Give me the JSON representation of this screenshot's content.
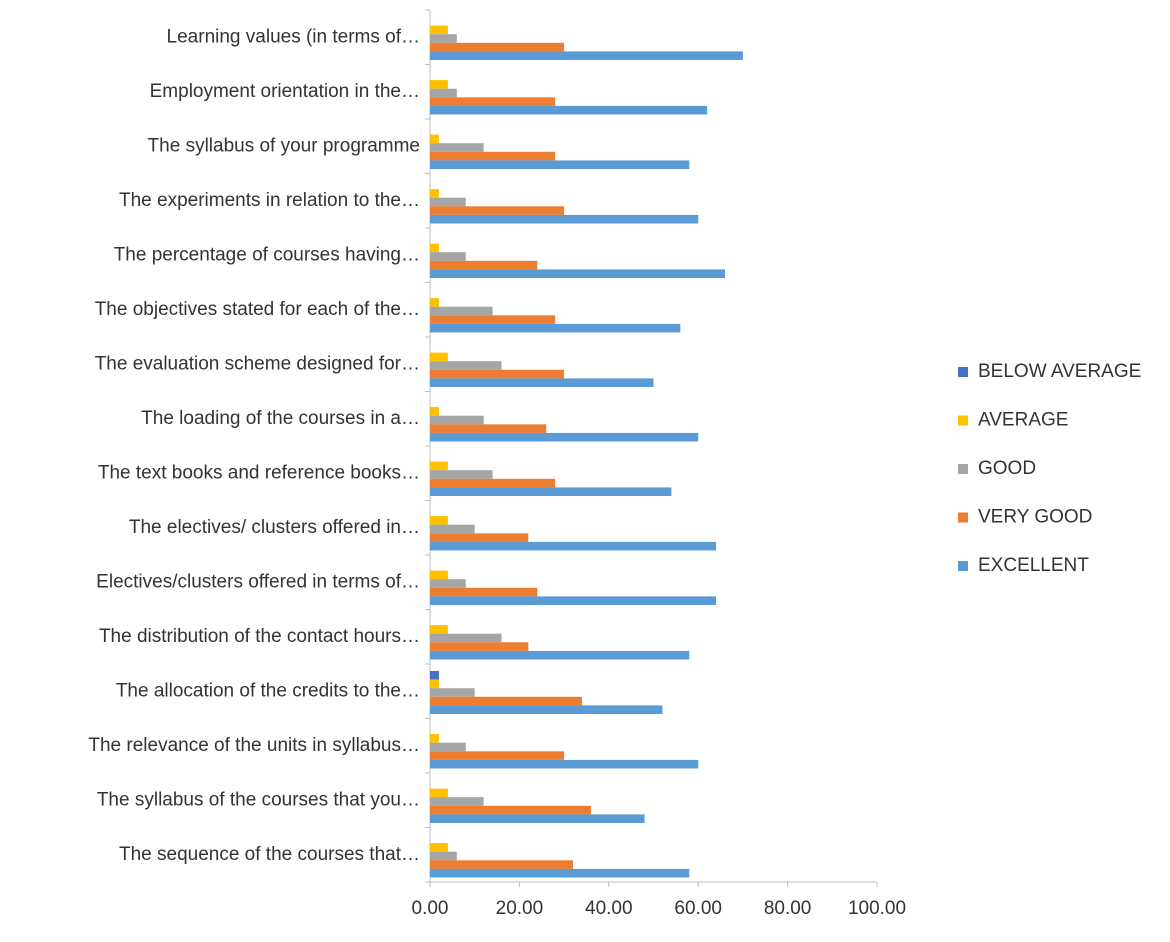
{
  "chart_data": {
    "type": "hbar",
    "categories": [
      "Learning values (in terms of…",
      "Employment orientation in the…",
      "The syllabus of your programme",
      "The experiments in relation to the…",
      "The percentage of courses having…",
      "The objectives stated for each of the…",
      "The evaluation scheme designed for…",
      "The loading of the courses in a…",
      "The text books and reference books…",
      "The electives/ clusters offered in…",
      "Electives/clusters offered in terms of…",
      "The distribution of the contact hours…",
      "The allocation of the credits to the…",
      "The relevance of the units in syllabus…",
      "The syllabus of the courses that you…",
      "The sequence of the courses that…"
    ],
    "series": [
      {
        "name": "BELOW AVERAGE",
        "color": "#4472c4",
        "values": [
          0,
          0,
          0,
          0,
          0,
          0,
          0,
          0,
          0,
          0,
          0,
          0,
          2,
          0,
          0,
          0
        ]
      },
      {
        "name": "AVERAGE",
        "color": "#ffc000",
        "values": [
          4,
          4,
          2,
          2,
          2,
          2,
          4,
          2,
          4,
          4,
          4,
          4,
          2,
          2,
          4,
          4
        ]
      },
      {
        "name": "GOOD",
        "color": "#a5a5a5",
        "values": [
          6,
          6,
          12,
          8,
          8,
          14,
          16,
          12,
          14,
          10,
          8,
          16,
          10,
          8,
          12,
          6
        ]
      },
      {
        "name": "VERY GOOD",
        "color": "#ed7d31",
        "values": [
          30,
          28,
          28,
          30,
          24,
          28,
          30,
          26,
          28,
          22,
          24,
          22,
          34,
          30,
          36,
          32
        ]
      },
      {
        "name": "EXCELLENT",
        "color": "#5b9bd5",
        "values": [
          70,
          62,
          58,
          60,
          66,
          56,
          50,
          60,
          54,
          64,
          64,
          58,
          52,
          60,
          48,
          58
        ]
      }
    ],
    "xlim": [
      0,
      100
    ],
    "xticks": [
      {
        "value": 0,
        "label": "0.00"
      },
      {
        "value": 20,
        "label": "20.00"
      },
      {
        "value": 40,
        "label": "40.00"
      },
      {
        "value": 60,
        "label": "60.00"
      },
      {
        "value": 80,
        "label": "80.00"
      },
      {
        "value": 100,
        "label": "100.00"
      }
    ],
    "legend": "right"
  }
}
